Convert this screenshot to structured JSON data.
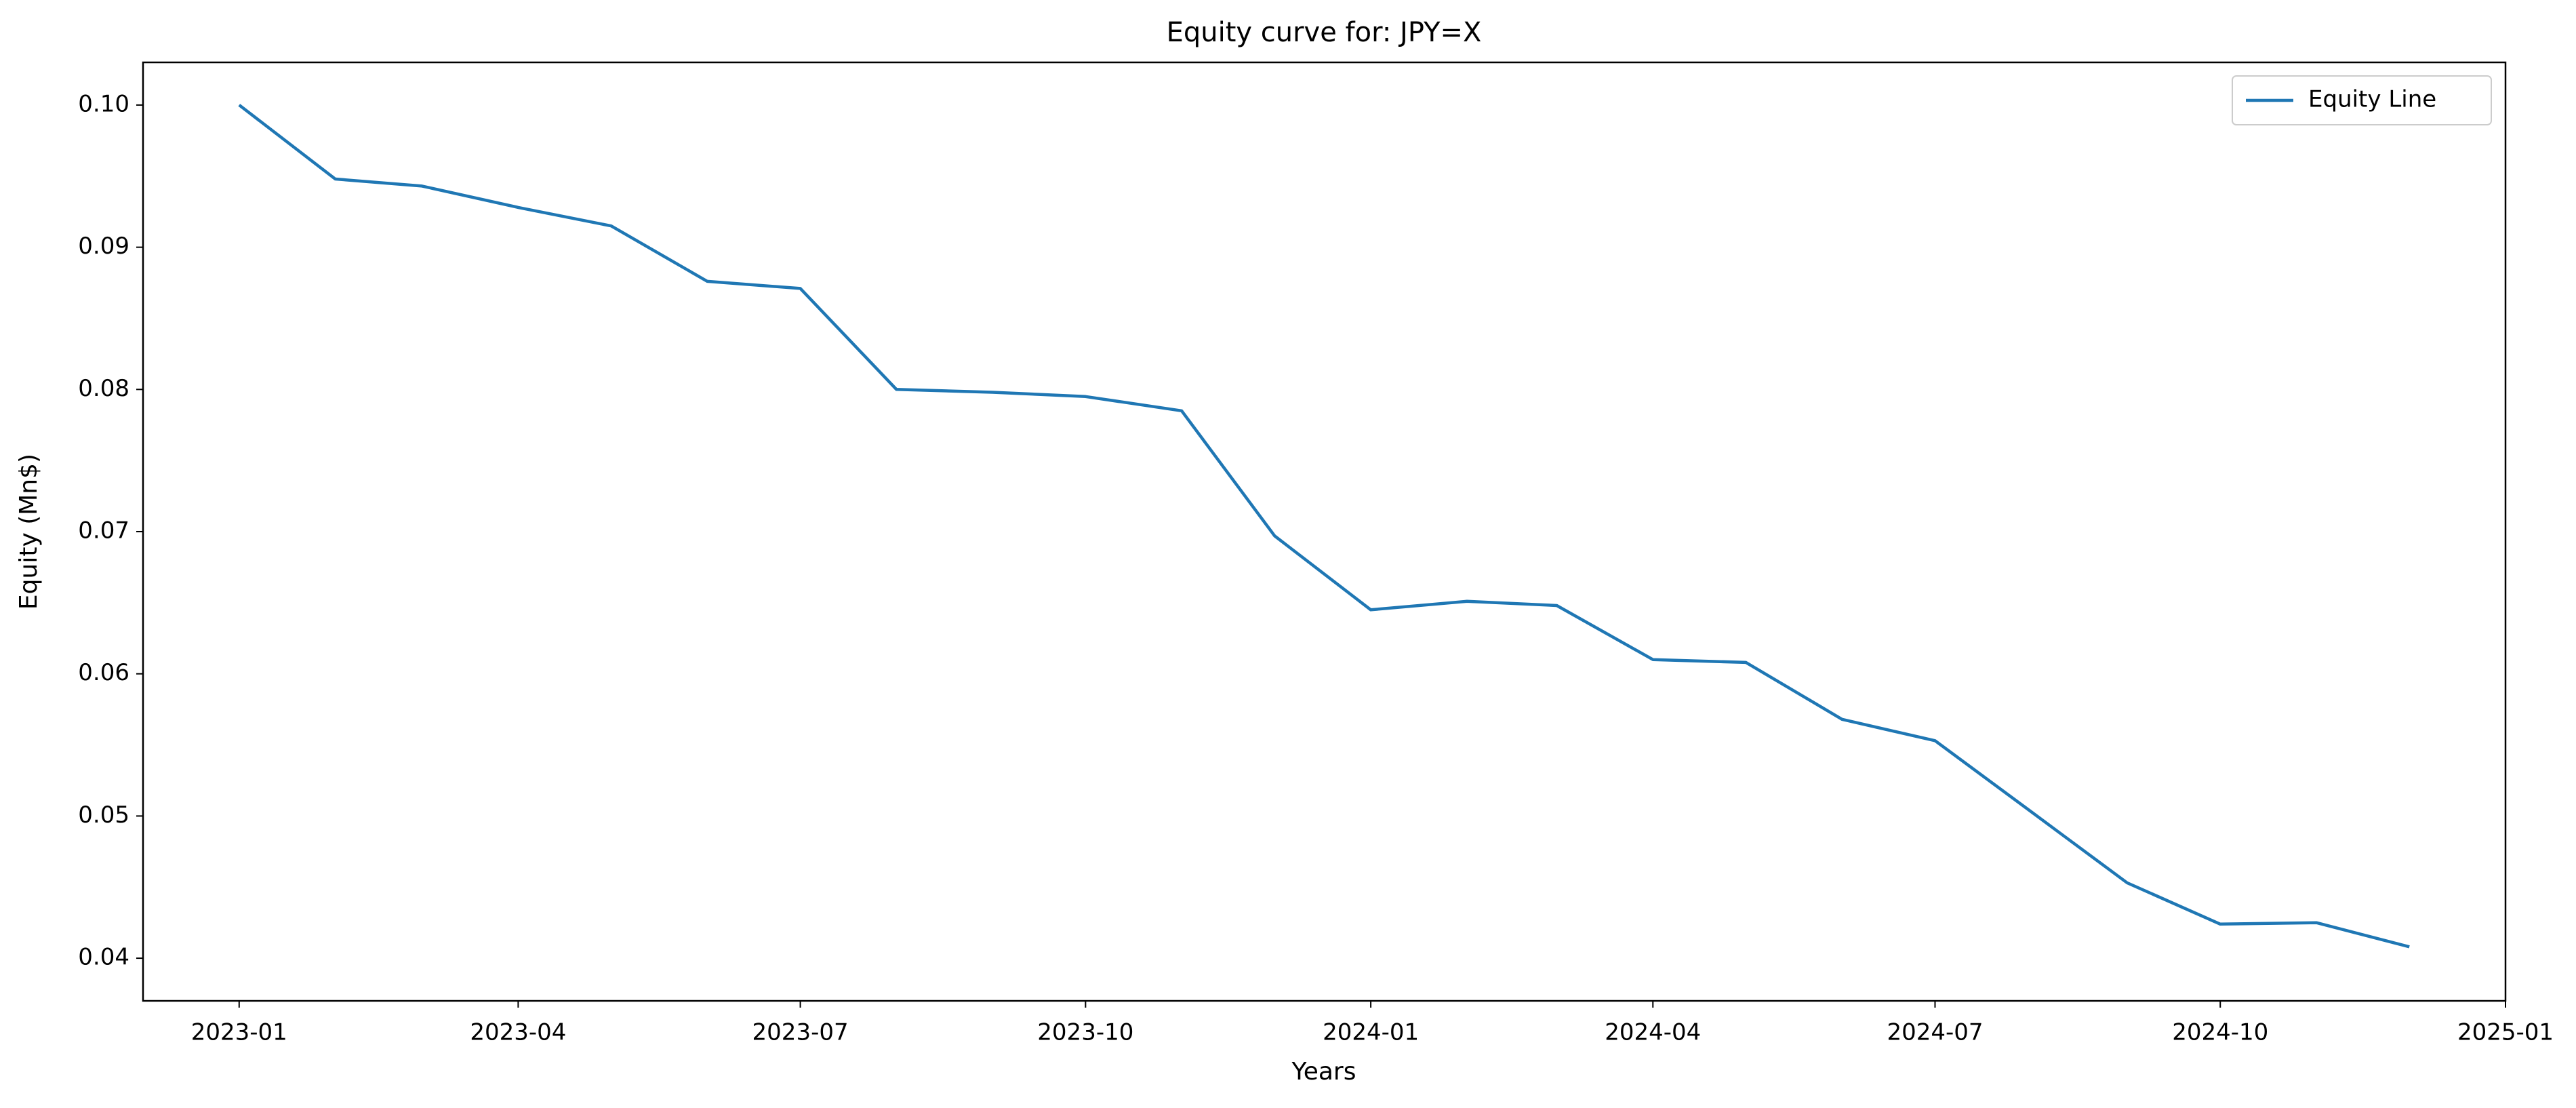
{
  "chart_data": {
    "type": "line",
    "title": "Equity curve for: JPY=X",
    "x_label": "Years",
    "y_label": "Equity (Mn$)",
    "x": [
      "2023-01",
      "2023-02",
      "2023-03",
      "2023-04",
      "2023-05",
      "2023-06",
      "2023-07",
      "2023-08",
      "2023-09",
      "2023-10",
      "2023-11",
      "2023-12",
      "2024-01",
      "2024-02",
      "2024-03",
      "2024-04",
      "2024-05",
      "2024-06",
      "2024-07",
      "2024-08",
      "2024-09",
      "2024-10",
      "2024-11",
      "2024-12"
    ],
    "series": [
      {
        "name": "Equity Line",
        "color": "#1f77b4",
        "values": [
          0.1,
          0.0948,
          0.0943,
          0.0928,
          0.0915,
          0.0876,
          0.0871,
          0.08,
          0.0798,
          0.0795,
          0.0785,
          0.0697,
          0.0645,
          0.0651,
          0.0648,
          0.061,
          0.0608,
          0.0568,
          0.0553,
          0.0503,
          0.0453,
          0.0424,
          0.0425,
          0.0408
        ]
      }
    ],
    "xlim": [
      "2022-12",
      "2025-01"
    ],
    "xticks": [
      "2023-01",
      "2023-04",
      "2023-07",
      "2023-10",
      "2024-01",
      "2024-04",
      "2024-07",
      "2024-10",
      "2025-01"
    ],
    "ylim": [
      0.037,
      0.103
    ],
    "yticks": [
      0.04,
      0.05,
      0.06,
      0.07,
      0.08,
      0.09,
      {
        "value": 0.1,
        "label": "0.10"
      }
    ],
    "grid": false,
    "legend": "upper right"
  }
}
